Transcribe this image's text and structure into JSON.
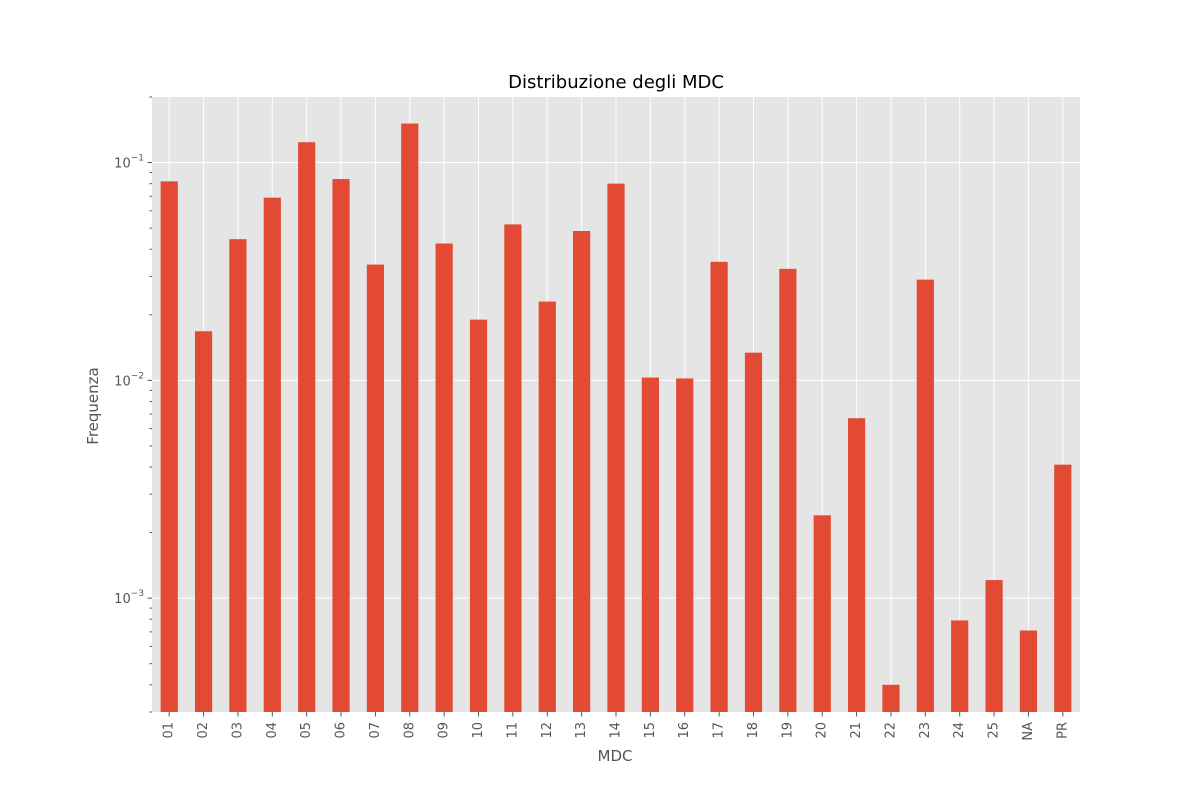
{
  "chart_data": {
    "type": "bar",
    "title": "Distribuzione degli MDC",
    "xlabel": "MDC",
    "ylabel": "Frequenza",
    "yscale": "log",
    "ylim": [
      0.0003,
      0.2
    ],
    "grid": true,
    "yticks": [
      {
        "value": 0.001,
        "base": "10",
        "exp": "−3"
      },
      {
        "value": 0.01,
        "base": "10",
        "exp": "−2"
      },
      {
        "value": 0.1,
        "base": "10",
        "exp": "−1"
      }
    ],
    "bar_color": "#E24A33",
    "plot_background": "#E5E5E5",
    "grid_color": "#FFFFFF",
    "categories": [
      "01",
      "02",
      "03",
      "04",
      "05",
      "06",
      "07",
      "08",
      "09",
      "10",
      "11",
      "12",
      "13",
      "14",
      "15",
      "16",
      "17",
      "18",
      "19",
      "20",
      "21",
      "22",
      "23",
      "24",
      "25",
      "NA",
      "PR"
    ],
    "values": [
      0.082,
      0.0168,
      0.0445,
      0.069,
      0.124,
      0.084,
      0.034,
      0.151,
      0.0425,
      0.019,
      0.052,
      0.023,
      0.0485,
      0.08,
      0.0103,
      0.0102,
      0.035,
      0.0134,
      0.0325,
      0.0024,
      0.0067,
      0.0004,
      0.029,
      0.00079,
      0.00121,
      0.00071,
      0.0041
    ]
  }
}
